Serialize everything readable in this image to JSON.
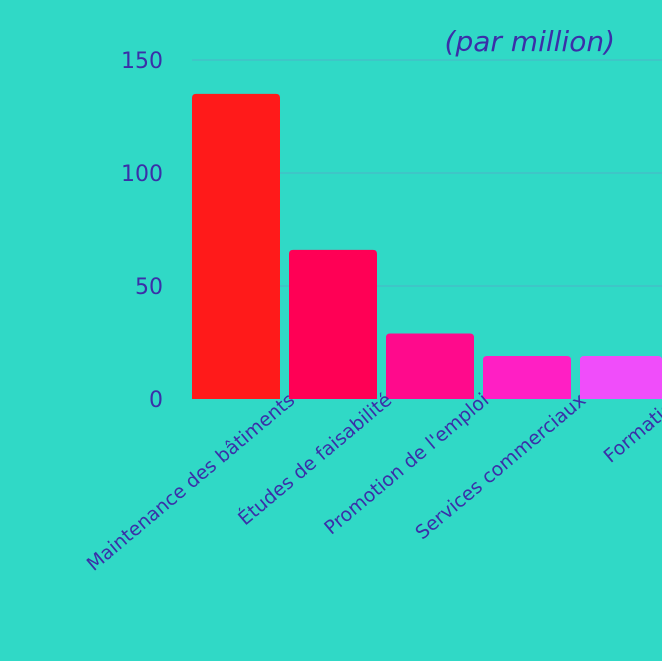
{
  "chart_data": {
    "type": "bar",
    "unit_label": "(par million)",
    "categories": [
      "Maintenance des bâtiments",
      "Études de faisabilité",
      "Promotion de l'emploi",
      "Services commerciaux",
      "Formation"
    ],
    "values": [
      135,
      66,
      29,
      19,
      19
    ],
    "colors": [
      "#ff1a1a",
      "#ff0055",
      "#ff0a8c",
      "#ff1fc4",
      "#f04dfa"
    ],
    "ylim": [
      0,
      150
    ],
    "yticks": [
      0,
      50,
      100,
      150
    ],
    "grid": true,
    "legend": "none"
  }
}
